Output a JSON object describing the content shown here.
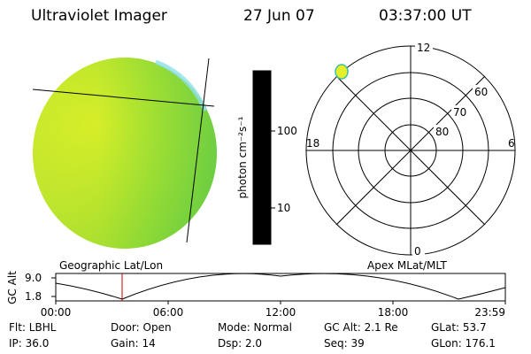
{
  "header": {
    "title": "Ultraviolet Imager",
    "date": "27 Jun 07",
    "time": "03:37:00 UT"
  },
  "colorbar": {
    "unit_label": "photon cm⁻²s⁻¹",
    "ticks": [
      "100",
      "10"
    ],
    "colors": [
      "#000000",
      "#3a0a3a",
      "#7a0d2a",
      "#b00e1e",
      "#e01a1a",
      "#f04a10",
      "#f28a08",
      "#f4b400",
      "#fadc50",
      "#e6f03a",
      "#b4ea28",
      "#78e020",
      "#3cd060",
      "#28c8b8",
      "#50d8e8",
      "#a8e8f0",
      "#dcecf0",
      "#f0f0f0"
    ]
  },
  "polar_plot": {
    "labels": {
      "top": "12",
      "bottom": "0",
      "left": "18",
      "right": "6",
      "lat_60": "60",
      "lat_70": "70",
      "lat_80": "80"
    }
  },
  "altitude_plot": {
    "ylabel": "GC Alt",
    "yticks": [
      "9.0",
      "1.8"
    ],
    "left_title": "Geographic Lat/Lon",
    "right_title": "Apex MLat/MLT",
    "xticks": [
      "00:00",
      "06:00",
      "12:00",
      "18:00",
      "23:59"
    ]
  },
  "footer": {
    "row1": {
      "flt": "Flt: LBHL",
      "door": "Door: Open",
      "mode": "Mode: Normal",
      "gc_alt": "GC Alt: 2.1 Re",
      "glat": "GLat:  53.7"
    },
    "row2": {
      "ip": "IP: 36.0",
      "gain": "Gain: 14",
      "dsp": "Dsp:    2.0",
      "seq": "Seq: 39",
      "glon": "GLon: 176.1"
    }
  }
}
